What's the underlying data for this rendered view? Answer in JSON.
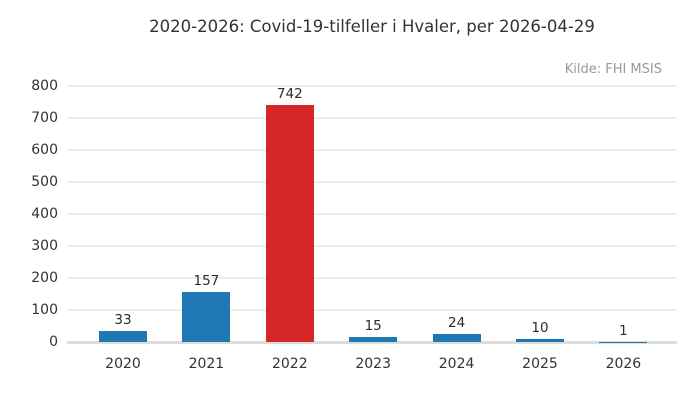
{
  "chart_data": {
    "type": "bar",
    "title": "2020-2026: Covid-19-tilfeller i Hvaler, per 2026-04-29",
    "source_label": "Kilde: FHI MSIS",
    "categories": [
      "2020",
      "2021",
      "2022",
      "2023",
      "2024",
      "2025",
      "2026"
    ],
    "values": [
      33,
      157,
      742,
      15,
      24,
      10,
      1
    ],
    "value_labels_shown": true,
    "bar_colors": [
      "#1f77b4",
      "#1f77b4",
      "#d62728",
      "#1f77b4",
      "#1f77b4",
      "#1f77b4",
      "#1f77b4"
    ],
    "xlabel": "",
    "ylabel": "",
    "ylim": [
      0,
      800
    ],
    "yticks": [
      0,
      100,
      200,
      300,
      400,
      500,
      600,
      700,
      800
    ],
    "grid": true,
    "legend": "none",
    "colors": {
      "default_bar": "#1f77b4",
      "highlight_bar": "#d62728",
      "gridline": "#ececec",
      "baseline": "#dcdcdc",
      "text": "#333333",
      "source_text": "#999999",
      "background": "#ffffff"
    }
  }
}
